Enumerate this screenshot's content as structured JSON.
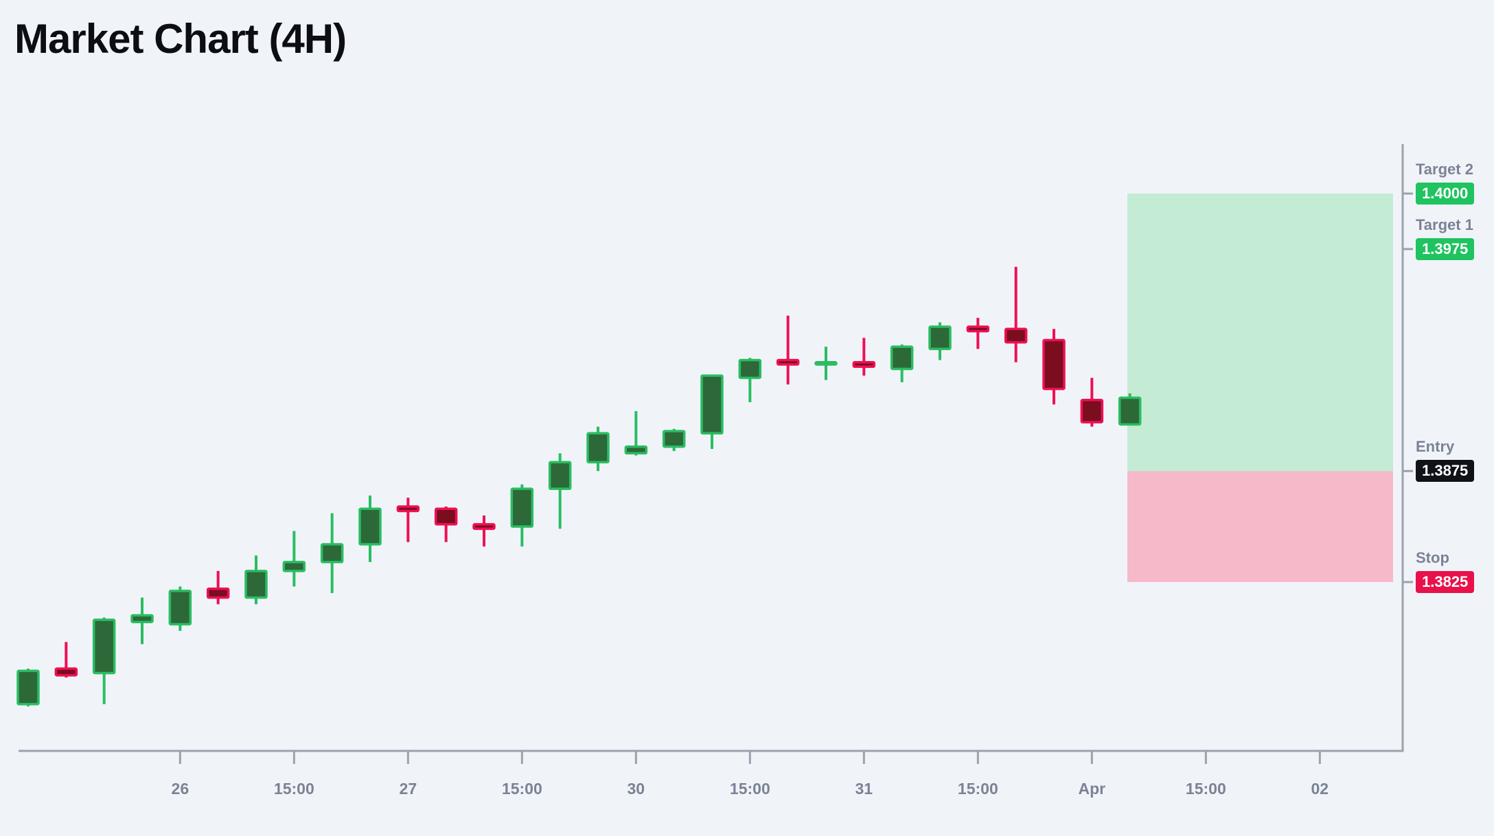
{
  "title": "Market Chart (4H)",
  "colors": {
    "background": "#f0f4f9",
    "title": "#0c0e13",
    "axis_line": "#9ba2ad",
    "tick_label": "#7b8294",
    "bullish_body": "#2d6839",
    "bullish_border": "#2abd62",
    "bearish_body": "#7a0d1e",
    "bearish_border": "#ef0f55",
    "profit_zone": "#c4ebd4",
    "loss_zone": "#f5b9ca",
    "target_badge": "#1fc35f",
    "entry_badge": "#101218",
    "stop_badge": "#e81149"
  },
  "levels": [
    {
      "id": "target2",
      "label": "Target 2",
      "value": "1.4000",
      "price": 1.4,
      "badge_color": "#1fc35f"
    },
    {
      "id": "target1",
      "label": "Target 1",
      "value": "1.3975",
      "price": 1.3975,
      "badge_color": "#1fc35f"
    },
    {
      "id": "entry",
      "label": "Entry",
      "value": "1.3875",
      "price": 1.3875,
      "badge_color": "#101218"
    },
    {
      "id": "stop",
      "label": "Stop",
      "value": "1.3825",
      "price": 1.3825,
      "badge_color": "#e81149"
    }
  ],
  "zones": [
    {
      "name": "reward-zone",
      "top_price": 1.4,
      "bottom_price": 1.3875,
      "color": "#c4ebd4"
    },
    {
      "name": "risk-zone",
      "top_price": 1.3875,
      "bottom_price": 1.3825,
      "color": "#f5b9ca"
    }
  ],
  "chart_data": {
    "type": "candlestick",
    "title": "Market Chart (4H)",
    "timeframe": "4H",
    "legend_position": "none",
    "grid": false,
    "price_axis": {
      "side": "right",
      "marked_levels": [
        1.4,
        1.3975,
        1.3875,
        1.3825
      ],
      "visible_range": [
        1.3749,
        1.4023
      ]
    },
    "time_axis": {
      "tick_labels": [
        "26",
        "15:00",
        "27",
        "15:00",
        "30",
        "15:00",
        "31",
        "15:00",
        "Apr",
        "15:00",
        "02"
      ],
      "tick_candle_indices": [
        4,
        7,
        10,
        13,
        16,
        19,
        22,
        25,
        28,
        31,
        34
      ]
    },
    "candles": [
      {
        "o": 1.377,
        "h": 1.3786,
        "l": 1.3769,
        "c": 1.3785
      },
      {
        "o": 1.3786,
        "h": 1.3798,
        "l": 1.3782,
        "c": 1.3783
      },
      {
        "o": 1.3784,
        "h": 1.3809,
        "l": 1.377,
        "c": 1.3808
      },
      {
        "o": 1.3807,
        "h": 1.3818,
        "l": 1.3797,
        "c": 1.381
      },
      {
        "o": 1.3806,
        "h": 1.3823,
        "l": 1.3803,
        "c": 1.3821
      },
      {
        "o": 1.3822,
        "h": 1.383,
        "l": 1.3815,
        "c": 1.3818
      },
      {
        "o": 1.3818,
        "h": 1.3837,
        "l": 1.3815,
        "c": 1.383
      },
      {
        "o": 1.383,
        "h": 1.3848,
        "l": 1.3823,
        "c": 1.3834
      },
      {
        "o": 1.3834,
        "h": 1.3856,
        "l": 1.382,
        "c": 1.3842
      },
      {
        "o": 1.3842,
        "h": 1.3864,
        "l": 1.3834,
        "c": 1.3858
      },
      {
        "o": 1.3859,
        "h": 1.3863,
        "l": 1.3843,
        "c": 1.3857
      },
      {
        "o": 1.3858,
        "h": 1.3859,
        "l": 1.3843,
        "c": 1.3851
      },
      {
        "o": 1.3851,
        "h": 1.3855,
        "l": 1.3841,
        "c": 1.3849
      },
      {
        "o": 1.385,
        "h": 1.3869,
        "l": 1.3841,
        "c": 1.3867
      },
      {
        "o": 1.3867,
        "h": 1.3883,
        "l": 1.3849,
        "c": 1.3879
      },
      {
        "o": 1.3879,
        "h": 1.3895,
        "l": 1.3875,
        "c": 1.3892
      },
      {
        "o": 1.3883,
        "h": 1.3902,
        "l": 1.3882,
        "c": 1.3886
      },
      {
        "o": 1.3886,
        "h": 1.3894,
        "l": 1.3884,
        "c": 1.3893
      },
      {
        "o": 1.3892,
        "h": 1.3918,
        "l": 1.3885,
        "c": 1.3918
      },
      {
        "o": 1.3917,
        "h": 1.3926,
        "l": 1.3906,
        "c": 1.3925
      },
      {
        "o": 1.3925,
        "h": 1.3945,
        "l": 1.3914,
        "c": 1.3923
      },
      {
        "o": 1.3923,
        "h": 1.3931,
        "l": 1.3916,
        "c": 1.3924
      },
      {
        "o": 1.3924,
        "h": 1.3935,
        "l": 1.3918,
        "c": 1.3922
      },
      {
        "o": 1.3921,
        "h": 1.3932,
        "l": 1.3915,
        "c": 1.3931
      },
      {
        "o": 1.393,
        "h": 1.3942,
        "l": 1.3925,
        "c": 1.394
      },
      {
        "o": 1.394,
        "h": 1.3944,
        "l": 1.393,
        "c": 1.3938
      },
      {
        "o": 1.3939,
        "h": 1.3967,
        "l": 1.3924,
        "c": 1.3933
      },
      {
        "o": 1.3934,
        "h": 1.3939,
        "l": 1.3905,
        "c": 1.3912
      },
      {
        "o": 1.3907,
        "h": 1.3917,
        "l": 1.3895,
        "c": 1.3897
      },
      {
        "o": 1.3896,
        "h": 1.391,
        "l": 1.3896,
        "c": 1.3908
      }
    ]
  }
}
